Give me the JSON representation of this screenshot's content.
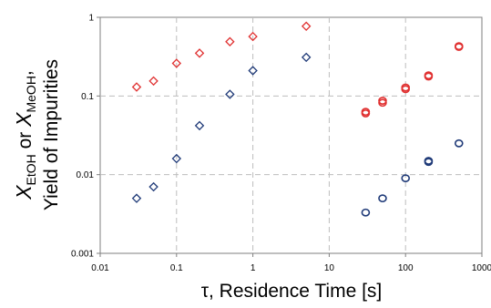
{
  "chart_data": {
    "type": "scatter",
    "title": "",
    "xlabel": "τ, Residence Time [s]",
    "ylabel_line1_parts": [
      {
        "text": "X",
        "style": "italic"
      },
      {
        "text": "EtOH",
        "style": "sub"
      },
      {
        "text": " or ",
        "style": "normal"
      },
      {
        "text": "X",
        "style": "italic"
      },
      {
        "text": "MeOH",
        "style": "sub"
      },
      {
        "text": ",",
        "style": "normal"
      }
    ],
    "ylabel_line2": "Yield of Impurities",
    "xscale": "log",
    "yscale": "log",
    "xlim": [
      0.01,
      1000
    ],
    "ylim": [
      0.001,
      1
    ],
    "x_ticks": [
      0.01,
      0.1,
      1,
      10,
      100,
      1000
    ],
    "x_tick_labels": [
      "0.01",
      "0.1",
      "1",
      "10",
      "100",
      "1000"
    ],
    "y_ticks": [
      0.001,
      0.01,
      0.1,
      1
    ],
    "y_tick_labels": [
      "0.001",
      "0.01",
      "0.1",
      "1"
    ],
    "grid": true,
    "legend": "none",
    "series": [
      {
        "marker": "diamond",
        "color": "#e03030",
        "points": [
          [
            0.03,
            0.13
          ],
          [
            0.05,
            0.155
          ],
          [
            0.1,
            0.26
          ],
          [
            0.2,
            0.35
          ],
          [
            0.5,
            0.49
          ],
          [
            1,
            0.57
          ],
          [
            5,
            0.77
          ]
        ]
      },
      {
        "marker": "diamond",
        "color": "#1f3a78",
        "points": [
          [
            0.03,
            0.005
          ],
          [
            0.05,
            0.007
          ],
          [
            0.1,
            0.016
          ],
          [
            0.2,
            0.042
          ],
          [
            0.5,
            0.105
          ],
          [
            1,
            0.21
          ],
          [
            5,
            0.31
          ]
        ]
      },
      {
        "marker": "circle",
        "color": "#e03030",
        "points": [
          [
            30,
            0.06
          ],
          [
            30,
            0.063
          ],
          [
            50,
            0.082
          ],
          [
            50,
            0.087
          ],
          [
            100,
            0.122
          ],
          [
            100,
            0.128
          ],
          [
            200,
            0.177
          ],
          [
            200,
            0.183
          ],
          [
            500,
            0.42
          ],
          [
            500,
            0.43
          ]
        ]
      },
      {
        "marker": "circle",
        "color": "#1f3a78",
        "points": [
          [
            30,
            0.0033
          ],
          [
            50,
            0.005
          ],
          [
            100,
            0.009
          ],
          [
            200,
            0.0145
          ],
          [
            200,
            0.015
          ],
          [
            500,
            0.025
          ]
        ]
      }
    ]
  }
}
